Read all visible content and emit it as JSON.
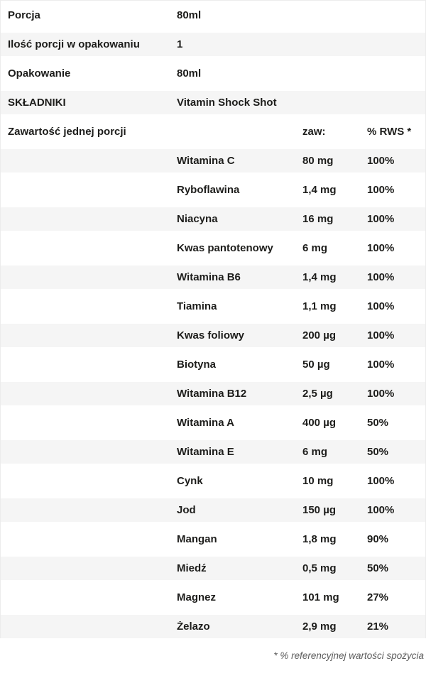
{
  "info_rows": [
    {
      "label": "Porcja",
      "value": "80ml"
    },
    {
      "label": "Ilość porcji w opakowaniu",
      "value": "1"
    },
    {
      "label": "Opakowanie",
      "value": "80ml"
    },
    {
      "label": "SKŁADNIKI",
      "value": "Vitamin Shock Shot"
    }
  ],
  "header_row": {
    "label": "Zawartość jednej porcji",
    "amount_label": "zaw:",
    "rws_prefix": "% ",
    "rws_abbr": "RWS",
    "rws_suffix": " *"
  },
  "nutrients": [
    {
      "name": "Witamina C",
      "amount": "80 mg",
      "rws": "100%"
    },
    {
      "name": "Ryboflawina",
      "amount": "1,4 mg",
      "rws": "100%"
    },
    {
      "name": "Niacyna",
      "amount": "16 mg",
      "rws": "100%"
    },
    {
      "name": "Kwas pantotenowy",
      "amount": "6 mg",
      "rws": "100%"
    },
    {
      "name": "Witamina B6",
      "amount": "1,4 mg",
      "rws": "100%"
    },
    {
      "name": "Tiamina",
      "amount": "1,1 mg",
      "rws": "100%"
    },
    {
      "name": "Kwas foliowy",
      "amount": "200 µg",
      "rws": "100%"
    },
    {
      "name": "Biotyna",
      "amount": "50 µg",
      "rws": "100%"
    },
    {
      "name": "Witamina B12",
      "amount": "2,5 µg",
      "rws": "100%"
    },
    {
      "name": "Witamina A",
      "amount": "400 µg",
      "rws": "50%"
    },
    {
      "name": "Witamina E",
      "amount": "6 mg",
      "rws": "50%"
    },
    {
      "name": "Cynk",
      "amount": "10 mg",
      "rws": "100%"
    },
    {
      "name": "Jod",
      "amount": "150 µg",
      "rws": "100%"
    },
    {
      "name": "Mangan",
      "amount": "1,8 mg",
      "rws": "90%"
    },
    {
      "name": "Miedź",
      "amount": "0,5 mg",
      "rws": "50%"
    },
    {
      "name": "Magnez",
      "amount": "101 mg",
      "rws": "27%"
    },
    {
      "name": "Żelazo",
      "amount": "2,9 mg",
      "rws": "21%"
    }
  ],
  "footnote": "* % referencyjnej wartości spożycia",
  "colors": {
    "stripe": "#f5f5f5",
    "text": "#1d1d1b",
    "border": "#ececec",
    "footnote": "#5c5c5c"
  }
}
